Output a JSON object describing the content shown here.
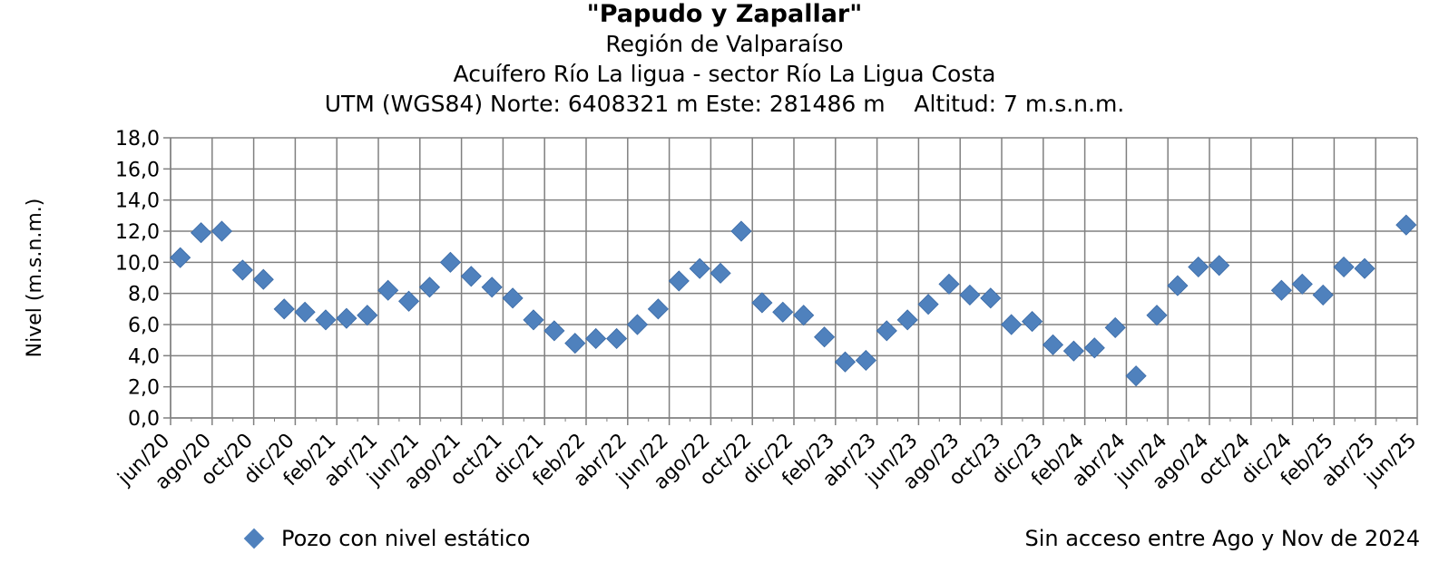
{
  "chart_data": {
    "type": "scatter",
    "title": "\"Papudo y Zapallar\"",
    "subtitle_lines": [
      "Región de Valparaíso",
      "Acuífero Río La ligua - sector Río La Ligua Costa",
      "UTM (WGS84) Norte: 6408321 m Este: 281486 m    Altitud: 7 m.s.n.m."
    ],
    "ylabel": "Nivel (m.s.n.m.)",
    "ylim": [
      0,
      18
    ],
    "y_ticks": [
      "0,0",
      "2,0",
      "4,0",
      "6,0",
      "8,0",
      "10,0",
      "12,0",
      "14,0",
      "16,0",
      "18,0"
    ],
    "x_ticks": [
      "jun/20",
      "ago/20",
      "oct/20",
      "dic/20",
      "feb/21",
      "abr/21",
      "jun/21",
      "ago/21",
      "oct/21",
      "dic/21",
      "feb/22",
      "abr/22",
      "jun/22",
      "ago/22",
      "oct/22",
      "dic/22",
      "feb/23",
      "abr/23",
      "jun/23",
      "ago/23",
      "oct/23",
      "dic/23",
      "feb/24",
      "abr/24",
      "jun/24",
      "ago/24",
      "oct/24",
      "dic/24",
      "feb/25",
      "abr/25",
      "jun/25"
    ],
    "xlim": [
      "2020-06-01",
      "2025-06-01"
    ],
    "grid": true,
    "legend_position": "bottom-left",
    "series": [
      {
        "name": "Pozo con nivel estático",
        "color": "#4f81bd",
        "marker": "diamond",
        "points": [
          {
            "x": "2020-06-15",
            "y": 10.3
          },
          {
            "x": "2020-07-15",
            "y": 11.9
          },
          {
            "x": "2020-08-15",
            "y": 12.0
          },
          {
            "x": "2020-09-15",
            "y": 9.5
          },
          {
            "x": "2020-10-15",
            "y": 8.9
          },
          {
            "x": "2020-11-15",
            "y": 7.0
          },
          {
            "x": "2020-12-15",
            "y": 6.8
          },
          {
            "x": "2021-01-15",
            "y": 6.3
          },
          {
            "x": "2021-02-15",
            "y": 6.4
          },
          {
            "x": "2021-03-15",
            "y": 6.6
          },
          {
            "x": "2021-04-15",
            "y": 8.2
          },
          {
            "x": "2021-05-15",
            "y": 7.5
          },
          {
            "x": "2021-06-15",
            "y": 8.4
          },
          {
            "x": "2021-07-15",
            "y": 10.0
          },
          {
            "x": "2021-08-15",
            "y": 9.1
          },
          {
            "x": "2021-09-15",
            "y": 8.4
          },
          {
            "x": "2021-10-15",
            "y": 7.7
          },
          {
            "x": "2021-11-15",
            "y": 6.3
          },
          {
            "x": "2021-12-15",
            "y": 5.6
          },
          {
            "x": "2022-01-15",
            "y": 4.8
          },
          {
            "x": "2022-02-15",
            "y": 5.1
          },
          {
            "x": "2022-03-15",
            "y": 5.1
          },
          {
            "x": "2022-04-15",
            "y": 6.0
          },
          {
            "x": "2022-05-15",
            "y": 7.0
          },
          {
            "x": "2022-06-15",
            "y": 8.8
          },
          {
            "x": "2022-07-15",
            "y": 9.6
          },
          {
            "x": "2022-08-15",
            "y": 9.3
          },
          {
            "x": "2022-09-15",
            "y": 12.0
          },
          {
            "x": "2022-10-15",
            "y": 7.4
          },
          {
            "x": "2022-11-15",
            "y": 6.8
          },
          {
            "x": "2022-12-15",
            "y": 6.6
          },
          {
            "x": "2023-01-15",
            "y": 5.2
          },
          {
            "x": "2023-02-15",
            "y": 3.6
          },
          {
            "x": "2023-03-15",
            "y": 3.7
          },
          {
            "x": "2023-04-15",
            "y": 5.6
          },
          {
            "x": "2023-05-15",
            "y": 6.3
          },
          {
            "x": "2023-06-15",
            "y": 7.3
          },
          {
            "x": "2023-07-15",
            "y": 8.6
          },
          {
            "x": "2023-08-15",
            "y": 7.9
          },
          {
            "x": "2023-09-15",
            "y": 7.7
          },
          {
            "x": "2023-10-15",
            "y": 6.0
          },
          {
            "x": "2023-11-15",
            "y": 6.2
          },
          {
            "x": "2023-12-15",
            "y": 4.7
          },
          {
            "x": "2024-01-15",
            "y": 4.3
          },
          {
            "x": "2024-02-15",
            "y": 4.5
          },
          {
            "x": "2024-03-15",
            "y": 5.8
          },
          {
            "x": "2024-04-15",
            "y": 2.7
          },
          {
            "x": "2024-05-15",
            "y": 6.6
          },
          {
            "x": "2024-06-15",
            "y": 8.5
          },
          {
            "x": "2024-07-15",
            "y": 9.7
          },
          {
            "x": "2024-08-15",
            "y": 9.8
          },
          {
            "x": "2024-11-15",
            "y": 8.2
          },
          {
            "x": "2024-12-15",
            "y": 8.6
          },
          {
            "x": "2025-01-15",
            "y": 7.9
          },
          {
            "x": "2025-02-15",
            "y": 9.7
          },
          {
            "x": "2025-03-15",
            "y": 9.6
          },
          {
            "x": "2025-05-15",
            "y": 12.4
          }
        ]
      }
    ],
    "note": "Sin acceso entre Ago y Nov de 2024"
  }
}
